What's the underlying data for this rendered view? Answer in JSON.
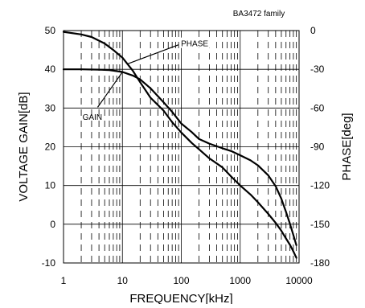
{
  "chart_data": {
    "type": "line",
    "subtitle": "BA3472 family",
    "xlabel": "FREQUENCY[kHz]",
    "ylabel_left": "VOLTAGE GAIN[dB]",
    "ylabel_right": "PHASE[deg]",
    "x_scale": "log",
    "xlim": [
      1,
      10000
    ],
    "ylim_left": [
      -10,
      50
    ],
    "ylim_right": [
      -180,
      0
    ],
    "x_ticks": [
      1,
      10,
      100,
      1000,
      10000
    ],
    "x_tick_labels": [
      "1",
      "10",
      "100",
      "1000",
      "10000"
    ],
    "y_left_ticks": [
      -10,
      0,
      10,
      20,
      30,
      40,
      50
    ],
    "y_left_tick_labels": [
      "-10",
      "0",
      "10",
      "20",
      "30",
      "40",
      "50"
    ],
    "y_right_ticks": [
      0,
      -30,
      -60,
      -90,
      -120,
      -150,
      -180
    ],
    "y_right_tick_labels": [
      "0",
      "-30",
      "-60",
      "-90",
      "-120",
      "-150",
      "-180"
    ],
    "grid": true,
    "series": [
      {
        "name": "GAIN",
        "axis": "left",
        "x": [
          1,
          2,
          4,
          6,
          10,
          15,
          20,
          30,
          50,
          70,
          100,
          150,
          200,
          300,
          500,
          700,
          1000,
          1500,
          2000,
          3000,
          4000,
          5000,
          6000,
          7000,
          8000,
          9000
        ],
        "y": [
          40,
          40,
          39.9,
          39.8,
          39.3,
          38.4,
          37.4,
          35.1,
          31.5,
          29,
          26,
          23.8,
          22,
          20.8,
          19.6,
          18.9,
          17.8,
          16.5,
          15.2,
          12.6,
          9.8,
          6.6,
          3.2,
          0.1,
          -2.8,
          -5.4
        ]
      },
      {
        "name": "PHASE",
        "axis": "right",
        "x": [
          1,
          2,
          3,
          5,
          7,
          10,
          15,
          20,
          30,
          50,
          70,
          100,
          150,
          200,
          300,
          500,
          700,
          1000,
          1500,
          2000,
          3000,
          4000,
          5000,
          6000,
          7000,
          8000,
          9000
        ],
        "y": [
          -1,
          -3,
          -5,
          -10,
          -15,
          -21,
          -31,
          -40,
          -52,
          -62,
          -71,
          -79,
          -87,
          -92,
          -99,
          -106,
          -113,
          -120,
          -127,
          -133,
          -142,
          -149,
          -155,
          -161,
          -166,
          -171,
          -176
        ]
      }
    ],
    "annotations": [
      {
        "text": "GAIN",
        "series": "GAIN"
      },
      {
        "text": "PHASE",
        "series": "PHASE"
      }
    ],
    "colors": {
      "background": "#ffffff",
      "line": "#000000",
      "grid": "#000000"
    }
  }
}
